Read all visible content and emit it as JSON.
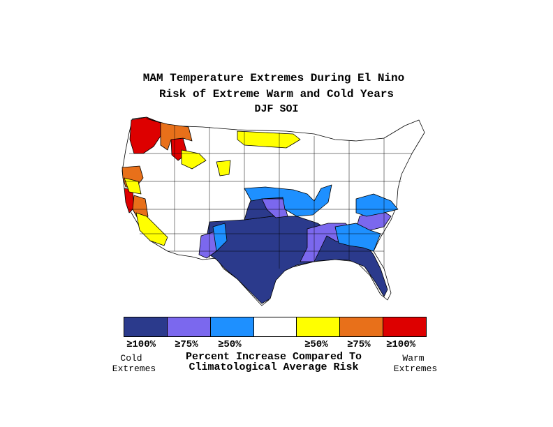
{
  "title": {
    "line1": "MAM Temperature Extremes During El Nino",
    "line2": "Risk of Extreme Warm and Cold Years",
    "line3": "DJF SOI"
  },
  "legend": {
    "colors": [
      "#2b3a8c",
      "#7b68ee",
      "#1e90ff",
      "#ffffff",
      "#ffff00",
      "#e8701a",
      "#dd0000"
    ],
    "labels": [
      "≥100%",
      "≥75%",
      "≥50%",
      "",
      "≥50%",
      "≥75%",
      "≥100%"
    ],
    "cold_label_1": "Cold",
    "cold_label_2": "Extremes",
    "warm_label_1": "Warm",
    "warm_label_2": "Extremes",
    "axis_line1": "Percent Increase Compared To",
    "axis_line2": "Climatological Average Risk"
  }
}
